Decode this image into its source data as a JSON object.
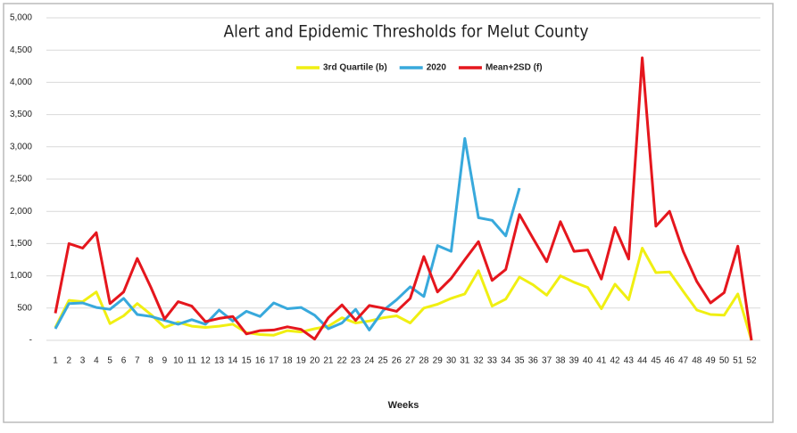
{
  "chart_data": {
    "type": "line",
    "title": "Alert and Epidemic Thresholds for Melut County",
    "x_label": "Weeks",
    "categories": [
      "1",
      "2",
      "3",
      "4",
      "5",
      "6",
      "7",
      "8",
      "9",
      "10",
      "11",
      "12",
      "13",
      "14",
      "15",
      "16",
      "17",
      "18",
      "19",
      "20",
      "21",
      "22",
      "23",
      "24",
      "25",
      "26",
      "27",
      "28",
      "29",
      "30",
      "31",
      "32",
      "33",
      "34",
      "35",
      "36",
      "37",
      "38",
      "39",
      "40",
      "41",
      "42",
      "43",
      "44",
      "45",
      "46",
      "47",
      "48",
      "49",
      "50",
      "51",
      "52"
    ],
    "series": [
      {
        "name": "3rd Quartile (b)",
        "color": "#f0ef12",
        "values": [
          200,
          620,
          600,
          750,
          260,
          380,
          570,
          400,
          200,
          280,
          220,
          200,
          220,
          250,
          120,
          90,
          80,
          150,
          130,
          180,
          220,
          350,
          270,
          300,
          350,
          380,
          270,
          500,
          560,
          650,
          720,
          1080,
          530,
          640,
          980,
          860,
          700,
          1000,
          900,
          820,
          490,
          870,
          630,
          1430,
          1050,
          1060,
          760,
          470,
          400,
          390,
          720,
          0
        ]
      },
      {
        "name": "2020",
        "color": "#38a9dc",
        "values": [
          180,
          570,
          580,
          510,
          480,
          650,
          400,
          370,
          310,
          250,
          320,
          250,
          470,
          300,
          450,
          370,
          580,
          490,
          510,
          390,
          180,
          270,
          480,
          160,
          460,
          630,
          830,
          680,
          1470,
          1380,
          3130,
          1900,
          1860,
          1620,
          2360,
          null,
          null,
          null,
          null,
          null,
          null,
          null,
          null,
          null,
          null,
          null,
          null,
          null,
          null,
          null,
          null,
          null
        ]
      },
      {
        "name": "Mean+2SD (f)",
        "color": "#e5161d",
        "values": [
          420,
          1500,
          1430,
          1670,
          570,
          750,
          1270,
          820,
          330,
          600,
          530,
          290,
          340,
          370,
          100,
          150,
          160,
          210,
          170,
          20,
          350,
          550,
          310,
          540,
          500,
          450,
          650,
          1300,
          750,
          960,
          1250,
          1530,
          930,
          1100,
          1950,
          1580,
          1220,
          1840,
          1380,
          1400,
          950,
          1750,
          1260,
          4380,
          1770,
          2000,
          1380,
          910,
          580,
          740,
          1460,
          0
        ]
      }
    ],
    "ylim": [
      0,
      5000
    ],
    "yticks": [
      {
        "value": 0,
        "label": "-"
      },
      500,
      {
        "value": 1000,
        "label": "1,000"
      },
      {
        "value": 1500,
        "label": "1,500"
      },
      {
        "value": 2000,
        "label": "2,000"
      },
      {
        "value": 2500,
        "label": "2,500"
      },
      {
        "value": 3000,
        "label": "3,000"
      },
      {
        "value": 3500,
        "label": "3,500"
      },
      {
        "value": 4000,
        "label": "4,000"
      },
      {
        "value": 4500,
        "label": "4,500"
      },
      {
        "value": 5000,
        "label": "5,000"
      }
    ],
    "grid": true,
    "legend": "top"
  }
}
